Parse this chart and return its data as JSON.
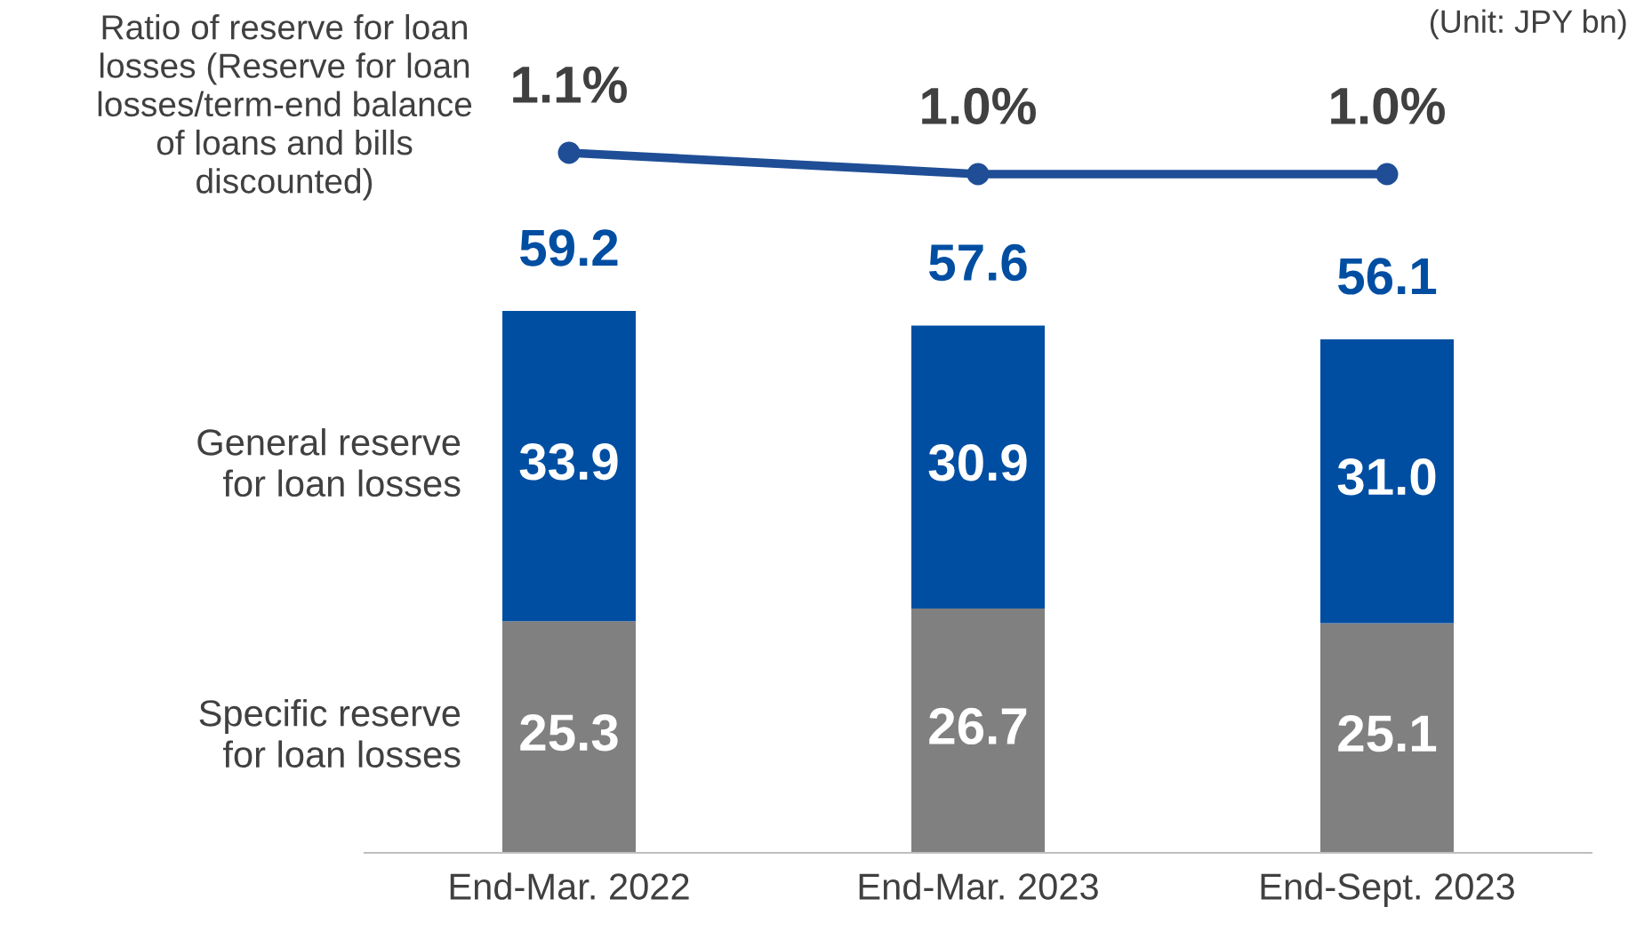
{
  "chart_data": [
    {
      "type": "line",
      "categories": [
        null,
        null,
        null
      ],
      "series": [
        {
          "name": "Ratio of reserve for loan losses (Reserve for loan losses/term-end balance of loans and bills discounted)",
          "color": "#1f4e96",
          "marker": "circle",
          "values": [
            1.1,
            1.0,
            1.0
          ],
          "value_labels": [
            "1.1%",
            "1.0%",
            "1.0%"
          ]
        }
      ],
      "tick_labels": false,
      "legend": false
    },
    {
      "type": "bar",
      "stacked": true,
      "categories": [
        "End-Mar. 2022",
        "End-Mar. 2023",
        "End-Sept. 2023"
      ],
      "series": [
        {
          "name": "Specific reserve for loan losses",
          "color": "#808080",
          "values": [
            25.3,
            26.7,
            25.1
          ],
          "value_labels": [
            "25.3",
            "26.7",
            "25.1"
          ]
        },
        {
          "name": "General reserve for loan losses",
          "color": "#004ea2",
          "values": [
            33.9,
            30.9,
            31.0
          ],
          "value_labels": [
            "33.9",
            "30.9",
            "31.0"
          ]
        }
      ],
      "totals": [
        "59.2",
        "57.6",
        "56.1"
      ],
      "tick_labels": "x",
      "legend": false,
      "annotations": [
        "(Unit: JPY bn)"
      ]
    }
  ]
}
